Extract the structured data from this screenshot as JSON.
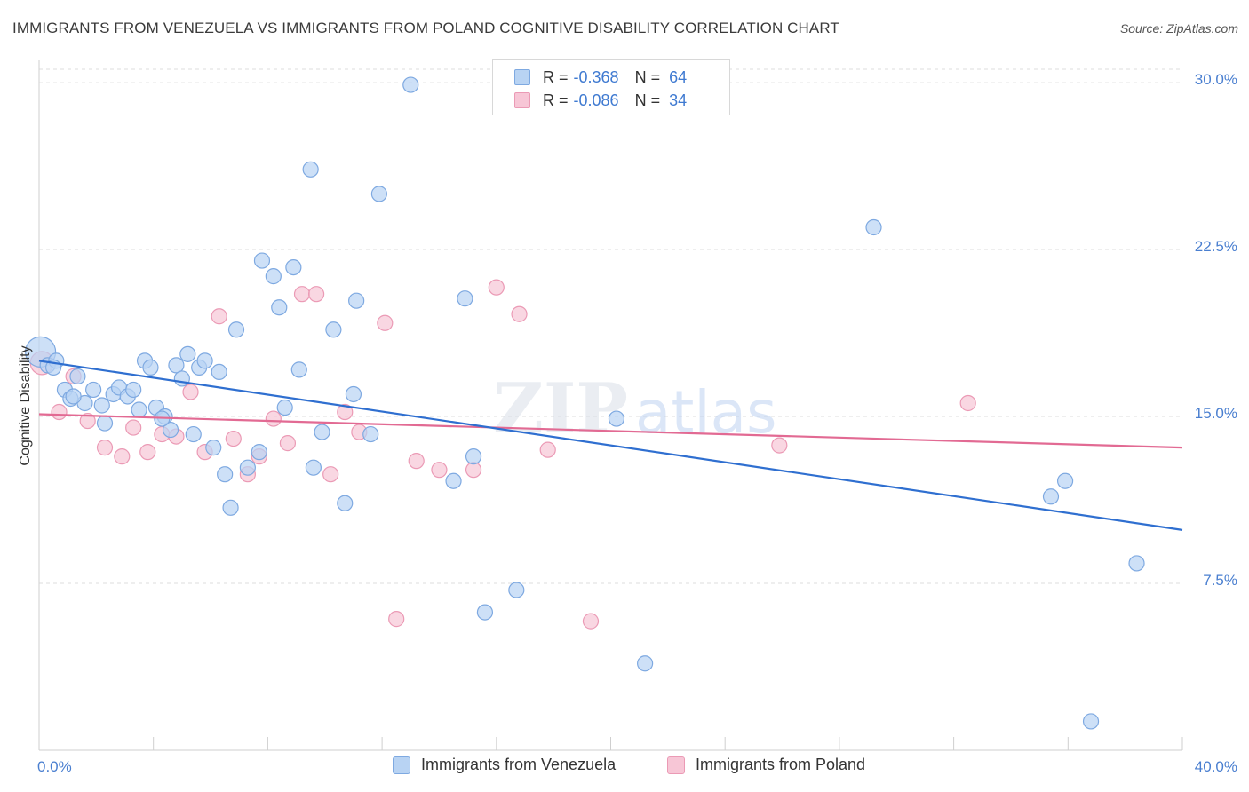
{
  "title": "IMMIGRANTS FROM VENEZUELA VS IMMIGRANTS FROM POLAND COGNITIVE DISABILITY CORRELATION CHART",
  "source": "Source: ZipAtlas.com",
  "watermark": {
    "zip": "ZIP",
    "atlas": "atlas"
  },
  "legend_top": [
    {
      "r_label": "R =",
      "r_value": "-0.368",
      "n_label": "N =",
      "n_value": "64"
    },
    {
      "r_label": "R =",
      "r_value": "-0.086",
      "n_label": "N =",
      "n_value": "34"
    }
  ],
  "legend_bottom": [
    {
      "label": "Immigrants from Venezuela"
    },
    {
      "label": "Immigrants from Poland"
    }
  ],
  "colors": {
    "venezuela_fill": "#b8d3f3",
    "venezuela_stroke": "#7ea9e1",
    "venezuela_line": "#2f6fd0",
    "poland_fill": "#f7c6d6",
    "poland_stroke": "#eb9ab5",
    "poland_line": "#e26a93",
    "tick_text": "#4a7fd0",
    "grid": "#dedede"
  },
  "chart_data": {
    "type": "scatter",
    "title": "IMMIGRANTS FROM VENEZUELA VS IMMIGRANTS FROM POLAND COGNITIVE DISABILITY CORRELATION CHART",
    "xlabel": "",
    "ylabel": "Cognitive Disability",
    "xlim": [
      0,
      40
    ],
    "ylim": [
      0,
      31
    ],
    "x_tick_labels": [
      {
        "value": 0,
        "label": "0.0%"
      },
      {
        "value": 40,
        "label": "40.0%"
      }
    ],
    "y_ticks": [
      {
        "value": 7.5,
        "label": "7.5%"
      },
      {
        "value": 15,
        "label": "15.0%"
      },
      {
        "value": 22.5,
        "label": "22.5%"
      },
      {
        "value": 30,
        "label": "30.0%"
      }
    ],
    "series": [
      {
        "name": "Immigrants from Venezuela",
        "points": [
          [
            0.05,
            17.9
          ],
          [
            0.3,
            17.3
          ],
          [
            0.6,
            17.5
          ],
          [
            0.9,
            16.2
          ],
          [
            1.1,
            15.8
          ],
          [
            1.35,
            16.8
          ],
          [
            1.6,
            15.6
          ],
          [
            1.9,
            16.2
          ],
          [
            2.2,
            15.5
          ],
          [
            2.3,
            14.7
          ],
          [
            2.6,
            16.0
          ],
          [
            2.8,
            16.3
          ],
          [
            3.1,
            15.9
          ],
          [
            3.3,
            16.2
          ],
          [
            3.5,
            15.3
          ],
          [
            3.7,
            17.5
          ],
          [
            3.9,
            17.2
          ],
          [
            4.1,
            15.4
          ],
          [
            4.4,
            15.0
          ],
          [
            4.6,
            14.4
          ],
          [
            4.8,
            17.3
          ],
          [
            5.0,
            16.7
          ],
          [
            5.2,
            17.8
          ],
          [
            5.4,
            14.2
          ],
          [
            5.6,
            17.2
          ],
          [
            5.8,
            17.5
          ],
          [
            6.1,
            13.6
          ],
          [
            6.3,
            17.0
          ],
          [
            6.5,
            12.4
          ],
          [
            6.7,
            10.9
          ],
          [
            6.9,
            18.9
          ],
          [
            7.3,
            12.7
          ],
          [
            7.7,
            13.4
          ],
          [
            7.8,
            22.0
          ],
          [
            8.2,
            21.3
          ],
          [
            8.4,
            19.9
          ],
          [
            8.6,
            15.4
          ],
          [
            8.9,
            21.7
          ],
          [
            9.1,
            17.1
          ],
          [
            9.6,
            12.7
          ],
          [
            9.9,
            14.3
          ],
          [
            10.3,
            18.9
          ],
          [
            10.7,
            11.1
          ],
          [
            11.1,
            20.2
          ],
          [
            11.6,
            14.2
          ],
          [
            9.5,
            26.1
          ],
          [
            11.9,
            25.0
          ],
          [
            13.0,
            29.9
          ],
          [
            14.5,
            12.1
          ],
          [
            14.9,
            20.3
          ],
          [
            15.2,
            13.2
          ],
          [
            15.6,
            6.2
          ],
          [
            16.7,
            7.2
          ],
          [
            20.2,
            14.9
          ],
          [
            21.2,
            3.9
          ],
          [
            29.2,
            23.5
          ],
          [
            35.4,
            11.4
          ],
          [
            35.9,
            12.1
          ],
          [
            38.4,
            8.4
          ],
          [
            36.8,
            1.3
          ],
          [
            1.2,
            15.9
          ],
          [
            4.3,
            14.9
          ],
          [
            11.0,
            16.0
          ],
          [
            0.5,
            17.2
          ]
        ],
        "trend": {
          "x": [
            0,
            40
          ],
          "y": [
            17.5,
            9.9
          ]
        }
      },
      {
        "name": "Immigrants from Poland",
        "points": [
          [
            0.1,
            17.4
          ],
          [
            0.7,
            15.2
          ],
          [
            1.2,
            16.8
          ],
          [
            1.7,
            14.8
          ],
          [
            2.3,
            13.6
          ],
          [
            2.9,
            13.2
          ],
          [
            3.3,
            14.5
          ],
          [
            3.8,
            13.4
          ],
          [
            4.3,
            14.2
          ],
          [
            4.8,
            14.1
          ],
          [
            5.3,
            16.1
          ],
          [
            5.8,
            13.4
          ],
          [
            6.3,
            19.5
          ],
          [
            6.8,
            14.0
          ],
          [
            7.3,
            12.4
          ],
          [
            7.7,
            13.2
          ],
          [
            8.2,
            14.9
          ],
          [
            8.7,
            13.8
          ],
          [
            9.2,
            20.5
          ],
          [
            9.7,
            20.5
          ],
          [
            10.2,
            12.4
          ],
          [
            10.7,
            15.2
          ],
          [
            11.2,
            14.3
          ],
          [
            12.1,
            19.2
          ],
          [
            12.5,
            5.9
          ],
          [
            13.2,
            13.0
          ],
          [
            14.0,
            12.6
          ],
          [
            15.2,
            12.6
          ],
          [
            16.0,
            20.8
          ],
          [
            16.8,
            19.6
          ],
          [
            17.8,
            13.5
          ],
          [
            19.3,
            5.8
          ],
          [
            25.9,
            13.7
          ],
          [
            32.5,
            15.6
          ]
        ],
        "trend": {
          "x": [
            0,
            40
          ],
          "y": [
            15.1,
            13.6
          ]
        }
      }
    ],
    "legend": [
      {
        "series": "Immigrants from Venezuela",
        "R": -0.368,
        "N": 64
      },
      {
        "series": "Immigrants from Poland",
        "R": -0.086,
        "N": 34
      }
    ]
  }
}
